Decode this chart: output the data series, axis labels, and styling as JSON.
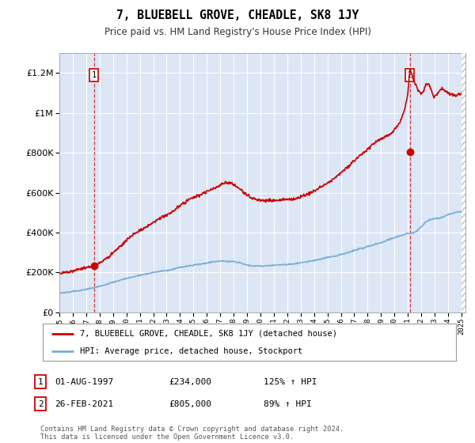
{
  "title": "7, BLUEBELL GROVE, CHEADLE, SK8 1JY",
  "subtitle": "Price paid vs. HM Land Registry's House Price Index (HPI)",
  "legend_line1": "7, BLUEBELL GROVE, CHEADLE, SK8 1JY (detached house)",
  "legend_line2": "HPI: Average price, detached house, Stockport",
  "sale1_date": "01-AUG-1997",
  "sale1_price": "£234,000",
  "sale1_hpi": "125% ↑ HPI",
  "sale2_date": "26-FEB-2021",
  "sale2_price": "£805,000",
  "sale2_hpi": "89% ↑ HPI",
  "footnote": "Contains HM Land Registry data © Crown copyright and database right 2024.\nThis data is licensed under the Open Government Licence v3.0.",
  "red_color": "#cc0000",
  "blue_color": "#7aafd4",
  "plot_bg_color": "#dce6f5",
  "marker1_x": 1997.583,
  "marker1_y": 234000,
  "marker2_x": 2021.15,
  "marker2_y": 805000,
  "xlim": [
    1995.0,
    2025.3
  ],
  "ylim": [
    0,
    1300000
  ],
  "yticks": [
    0,
    200000,
    400000,
    600000,
    800000,
    1000000,
    1200000
  ],
  "ytick_labels": [
    "£0",
    "£200K",
    "£400K",
    "£600K",
    "£800K",
    "£1M",
    "£1.2M"
  ],
  "xtick_years": [
    1995,
    1996,
    1997,
    1998,
    1999,
    2000,
    2001,
    2002,
    2003,
    2004,
    2005,
    2006,
    2007,
    2008,
    2009,
    2010,
    2011,
    2012,
    2013,
    2014,
    2015,
    2016,
    2017,
    2018,
    2019,
    2020,
    2021,
    2022,
    2023,
    2024,
    2025
  ]
}
